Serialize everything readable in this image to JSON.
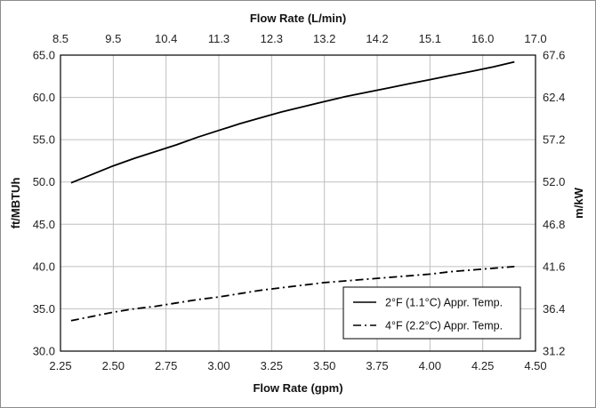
{
  "chart_data": {
    "type": "line",
    "xlabel": "Flow Rate (gpm)",
    "ylabel": "ft/MBTUh",
    "top_xlabel": "Flow Rate (L/min)",
    "right_ylabel": "m/kW",
    "xlim": [
      2.25,
      4.5
    ],
    "ylim": [
      30.0,
      65.0
    ],
    "x_ticks": [
      "2.25",
      "2.50",
      "2.75",
      "3.00",
      "3.25",
      "3.50",
      "3.75",
      "4.00",
      "4.25",
      "4.50"
    ],
    "y_ticks": [
      "30.0",
      "35.0",
      "40.0",
      "45.0",
      "50.0",
      "55.0",
      "60.0",
      "65.0"
    ],
    "top_ticks": [
      "8.5",
      "9.5",
      "10.4",
      "11.3",
      "12.3",
      "13.2",
      "14.2",
      "15.1",
      "16.0",
      "17.0"
    ],
    "right_ticks": [
      "31.2",
      "36.4",
      "41.6",
      "46.8",
      "52.0",
      "57.2",
      "62.4",
      "67.6"
    ],
    "grid": true,
    "legend_position": "bottom-right",
    "series": [
      {
        "name": "2°F (1.1°C) Appr. Temp.",
        "style": "solid",
        "color": "#000000",
        "x": [
          2.3,
          2.4,
          2.5,
          2.6,
          2.7,
          2.8,
          2.9,
          3.0,
          3.1,
          3.2,
          3.3,
          3.4,
          3.5,
          3.6,
          3.7,
          3.8,
          3.9,
          4.0,
          4.1,
          4.2,
          4.3,
          4.4
        ],
        "y": [
          49.9,
          50.9,
          51.9,
          52.8,
          53.6,
          54.4,
          55.3,
          56.1,
          56.9,
          57.6,
          58.3,
          58.9,
          59.5,
          60.1,
          60.6,
          61.1,
          61.6,
          62.1,
          62.6,
          63.1,
          63.6,
          64.2
        ]
      },
      {
        "name": "4°F (2.2°C) Appr. Temp.",
        "style": "dash-dot",
        "color": "#000000",
        "x": [
          2.3,
          2.4,
          2.5,
          2.6,
          2.7,
          2.8,
          2.9,
          3.0,
          3.1,
          3.2,
          3.3,
          3.4,
          3.5,
          3.6,
          3.7,
          3.8,
          3.9,
          4.0,
          4.1,
          4.2,
          4.3,
          4.4
        ],
        "y": [
          33.6,
          34.1,
          34.6,
          35.0,
          35.3,
          35.7,
          36.1,
          36.4,
          36.8,
          37.2,
          37.5,
          37.8,
          38.1,
          38.3,
          38.5,
          38.7,
          38.9,
          39.1,
          39.4,
          39.6,
          39.8,
          40.0
        ]
      }
    ]
  }
}
